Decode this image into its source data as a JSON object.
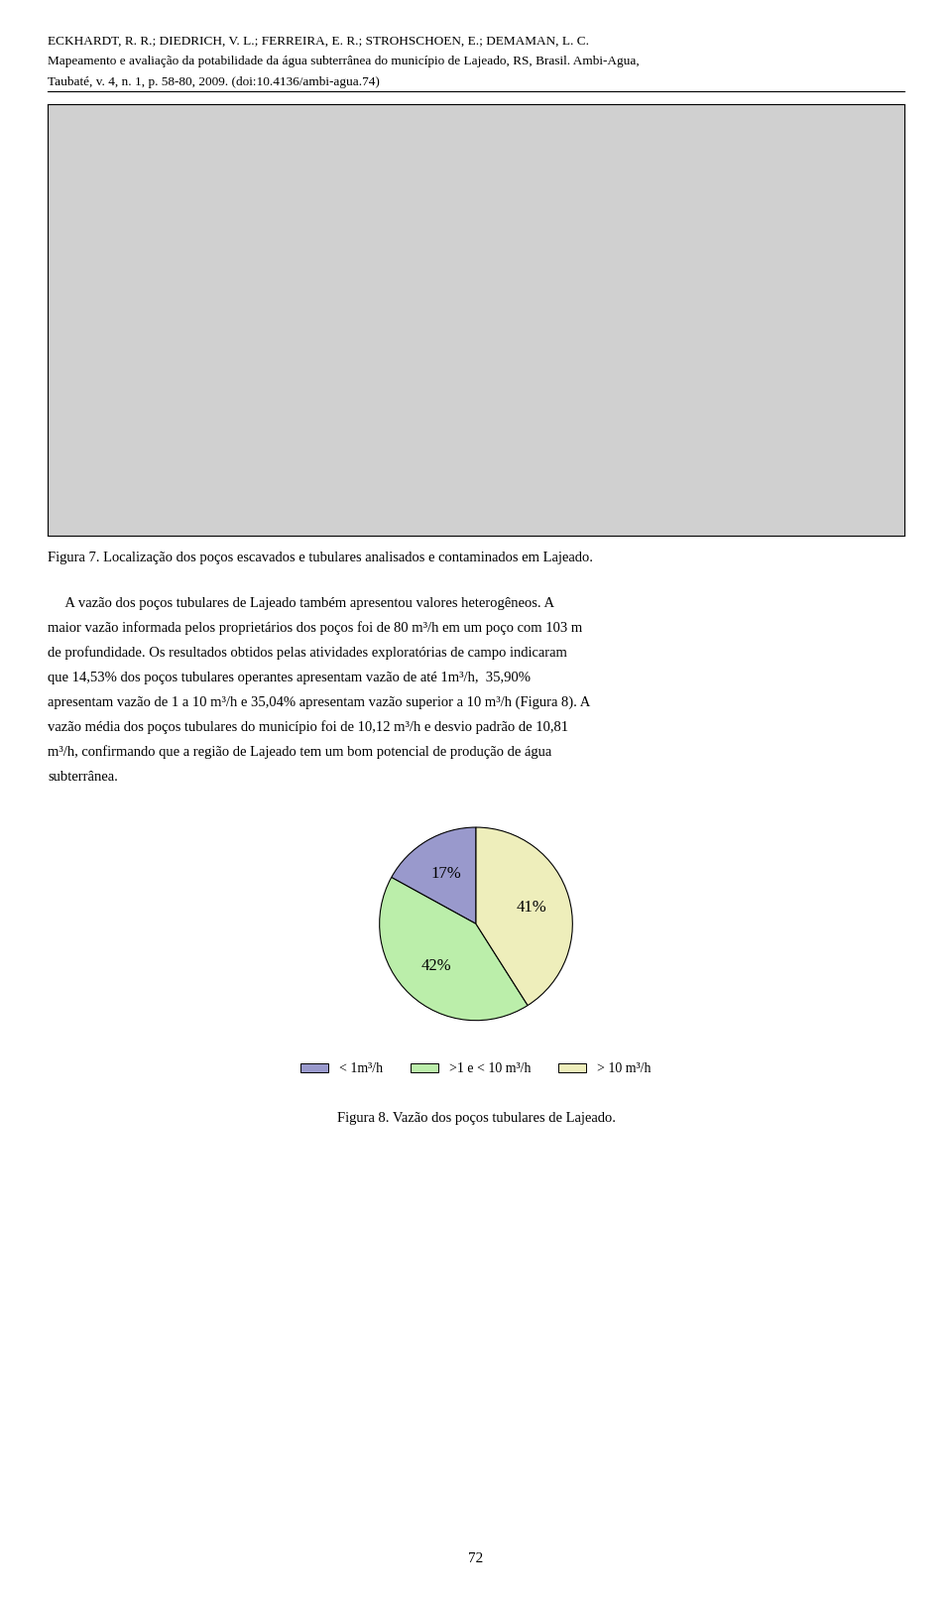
{
  "chart_data": {
    "type": "pie",
    "title": "Figura 8. Vazão dos poços tubulares de Lajeado.",
    "categories": [
      "< 1m³/h",
      ">1 e < 10 m³/h",
      "> 10 m³/h"
    ],
    "values": [
      17,
      42,
      41
    ],
    "value_labels": [
      "17%",
      "42%",
      "41%"
    ],
    "colors": [
      "#9999cc",
      "#bbeeaa",
      "#eeeebb"
    ],
    "data_labels": true,
    "legend": "lower center",
    "annotations": [
      [
        "ECKHARDT, R. R.; DIEDRICH, V. L.; FERREIRA, E. R.; STROHSCHOEN, E.; DEMAMAN, L. C.",
        "Mapeamento e avaliação da potabilidade da água subterrânea do município de Lajeado, RS, Brasil. Ambi-Agua,",
        "Taubaté, v. 4, n. 1, p. 58-80, 2009. (doi:10.4136/ambi-agua.74)"
      ],
      [
        "Figura 7. Localização dos poços escavados e tubulares analisados e contaminados em Lajeado."
      ],
      [
        "     A vazão dos poços tubulares de Lajeado também apresentou valores heterogêneos. A",
        "maior vazão informada pelos proprietários dos poços foi de 80 m³/h em um poço com 103 m",
        "de profundidade. Os resultados obtidos pelas atividades exploratórias de campo indicaram",
        "que 14,53% dos poços tubulares operantes apresentam vazão de até 1m³/h,  35,90%",
        "apresentam vazão de 1 a 10 m³/h e 35,04% apresentam vazão superior a 10 m³/h (Figura 8). A",
        "vazão média dos poços tubulares do município foi de 10,12 m³/h e desvio padrão de 10,81",
        "m³/h, confirmando que a região de Lajeado tem um bom potencial de produção de água",
        "subterrânea."
      ],
      [
        "72"
      ]
    ]
  }
}
